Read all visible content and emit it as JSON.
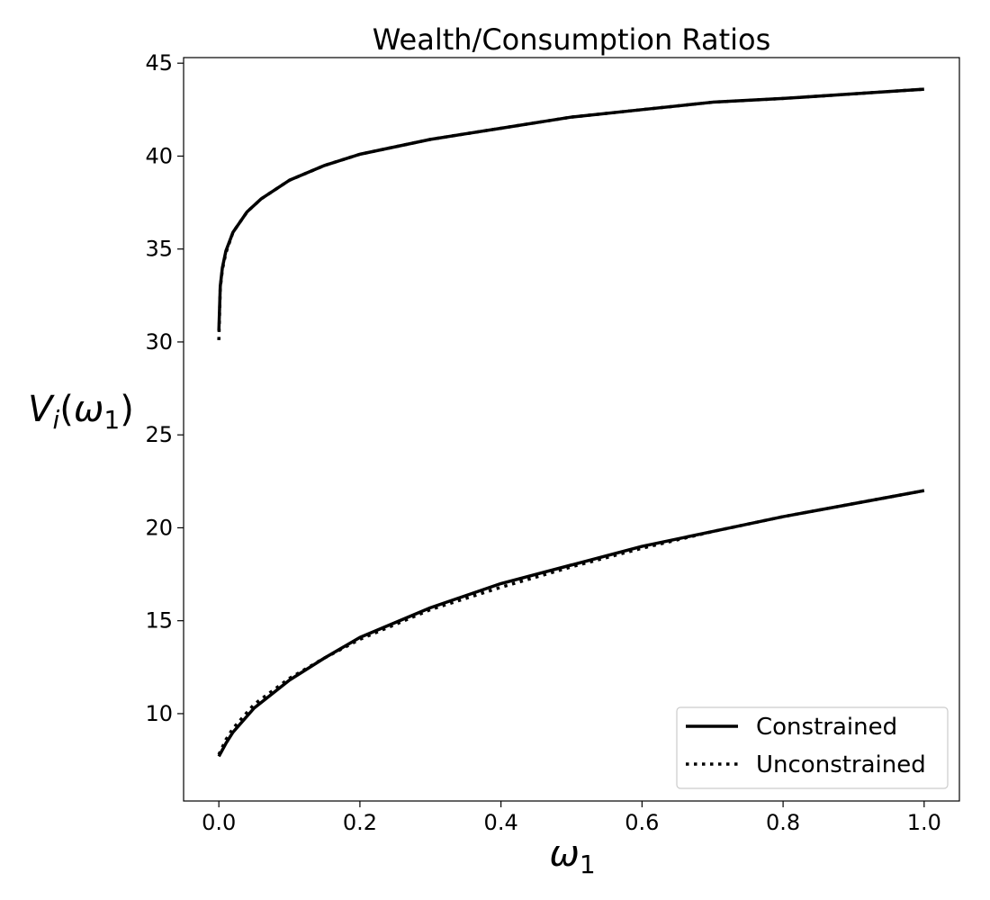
{
  "chart_data": {
    "type": "line",
    "title": "Wealth/Consumption Ratios",
    "xlabel": "ω1",
    "ylabel": "Vi(ω1)",
    "xlim": [
      -0.05,
      1.05
    ],
    "ylim": [
      5.3,
      45.3
    ],
    "xticks": [
      "0.0",
      "0.2",
      "0.4",
      "0.6",
      "0.8",
      "1.0"
    ],
    "yticks": [
      "10",
      "15",
      "20",
      "25",
      "30",
      "35",
      "40",
      "45"
    ],
    "grid": false,
    "legend_position": "bottom-right",
    "series": [
      {
        "name": "Constrained",
        "style": "solid",
        "color": "#000000",
        "x": [
          0.0,
          0.002,
          0.005,
          0.01,
          0.02,
          0.04,
          0.06,
          0.1,
          0.15,
          0.2,
          0.3,
          0.4,
          0.5,
          0.6,
          0.7,
          0.8,
          0.9,
          1.0
        ],
        "y": [
          30.6,
          33.0,
          34.0,
          34.9,
          35.9,
          37.0,
          37.7,
          38.7,
          39.5,
          40.1,
          40.9,
          41.5,
          42.1,
          42.5,
          42.9,
          43.1,
          43.35,
          43.6
        ]
      },
      {
        "name": "Constrained",
        "style": "solid",
        "color": "#000000",
        "x": [
          0.0,
          0.01,
          0.02,
          0.05,
          0.1,
          0.15,
          0.2,
          0.3,
          0.4,
          0.5,
          0.6,
          0.7,
          0.8,
          0.9,
          1.0
        ],
        "y": [
          7.7,
          8.4,
          9.0,
          10.3,
          11.8,
          13.0,
          14.1,
          15.7,
          17.0,
          18.0,
          19.0,
          19.8,
          20.6,
          21.3,
          22.0
        ]
      },
      {
        "name": "Unconstrained",
        "style": "dotted",
        "color": "#000000",
        "x": [
          0.0,
          0.002,
          0.005,
          0.01,
          0.02,
          0.04,
          0.06,
          0.1,
          0.15,
          0.2,
          0.3,
          0.4,
          0.5,
          0.6,
          0.7,
          0.8,
          0.9,
          1.0
        ],
        "y": [
          30.1,
          32.9,
          33.9,
          34.8,
          35.9,
          37.0,
          37.7,
          38.7,
          39.5,
          40.1,
          40.9,
          41.5,
          42.1,
          42.5,
          42.9,
          43.1,
          43.35,
          43.6
        ]
      },
      {
        "name": "Unconstrained",
        "style": "dotted",
        "color": "#000000",
        "x": [
          0.0,
          0.01,
          0.02,
          0.05,
          0.1,
          0.15,
          0.2,
          0.3,
          0.4,
          0.5,
          0.6,
          0.7,
          0.8,
          0.9,
          1.0
        ],
        "y": [
          7.8,
          8.6,
          9.2,
          10.5,
          11.9,
          13.0,
          14.0,
          15.6,
          16.8,
          17.9,
          18.9,
          19.8,
          20.6,
          21.3,
          22.0
        ]
      }
    ],
    "legend": [
      {
        "label": "Constrained",
        "style": "solid"
      },
      {
        "label": "Unconstrained",
        "style": "dotted"
      }
    ]
  }
}
